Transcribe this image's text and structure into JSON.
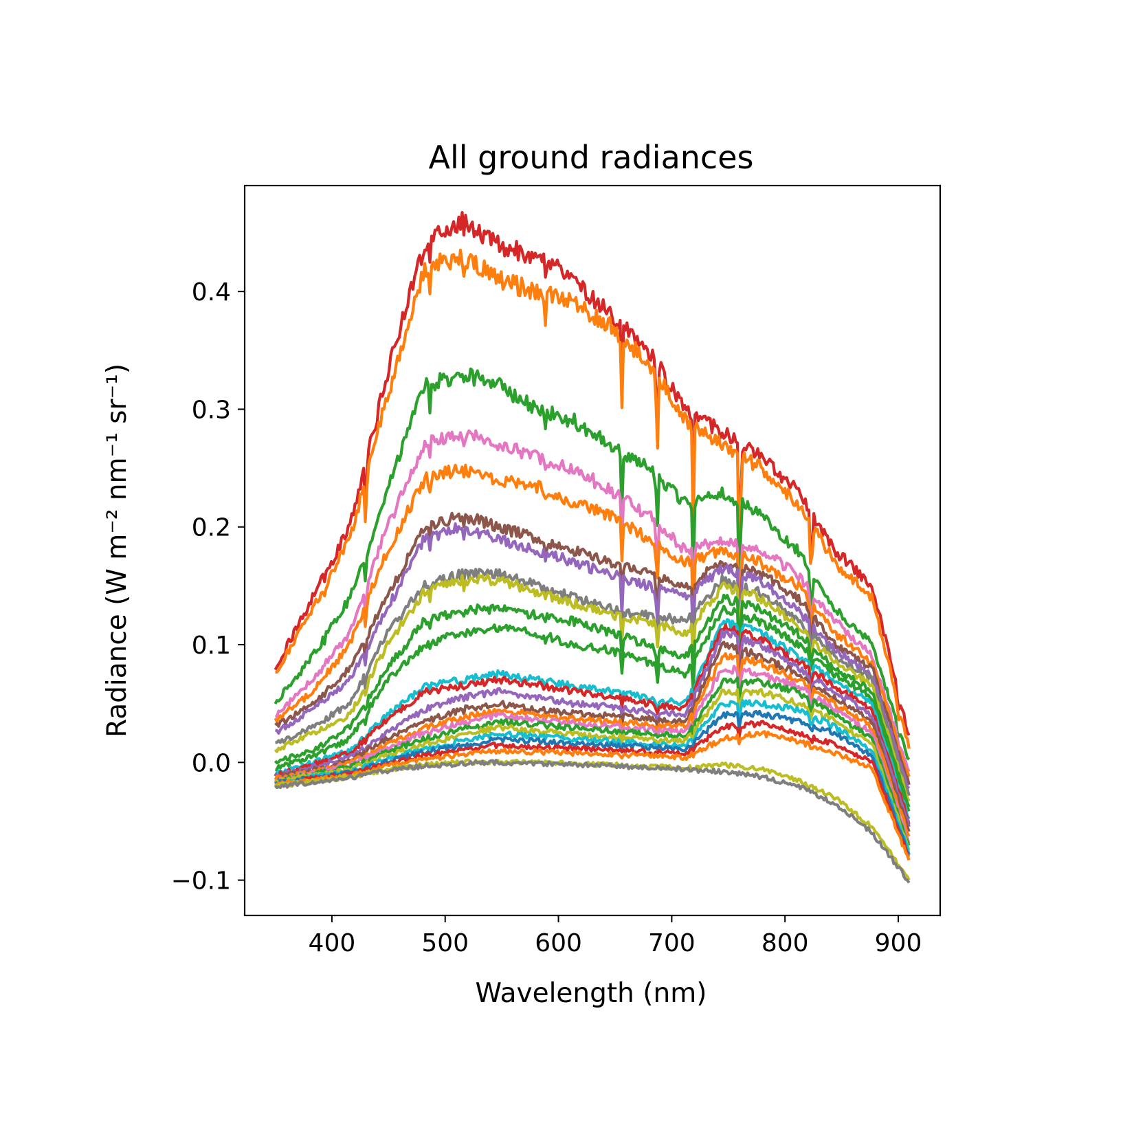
{
  "chart_data": {
    "type": "line",
    "title": "All ground radiances",
    "xlabel": "Wavelength (nm)",
    "ylabel": "Radiance (W m⁻² nm⁻¹ sr⁻¹)",
    "xlim": [
      323,
      937
    ],
    "ylim": [
      -0.13,
      0.49
    ],
    "x_ticks": [
      400,
      500,
      600,
      700,
      800,
      900
    ],
    "x_tick_labels": [
      "400",
      "500",
      "600",
      "700",
      "800",
      "900"
    ],
    "y_ticks": [
      -0.1,
      0.0,
      0.1,
      0.2,
      0.3,
      0.4
    ],
    "y_tick_labels": [
      "−0.1",
      "0.0",
      "0.1",
      "0.2",
      "0.3",
      "0.4"
    ],
    "grid": false,
    "legend": "none",
    "x_range": [
      350,
      910
    ],
    "colors": [
      "#d62728",
      "#ff7f0e",
      "#2ca02c",
      "#e377c2",
      "#ff7f0e",
      "#8c564b",
      "#9467bd",
      "#7f7f7f",
      "#bcbd22",
      "#2ca02c",
      "#17becf",
      "#1f77b4"
    ],
    "series": [
      {
        "values": [
          0.08,
          0.14,
          0.2,
          0.33,
          0.44,
          0.46,
          0.44,
          0.43,
          0.41,
          0.38,
          0.35,
          0.3,
          0.28,
          0.26,
          0.23,
          0.18,
          0.15,
          0.02
        ],
        "color": "#d62728"
      },
      {
        "values": [
          0.075,
          0.13,
          0.19,
          0.31,
          0.42,
          0.43,
          0.41,
          0.4,
          0.39,
          0.37,
          0.34,
          0.29,
          0.27,
          0.25,
          0.22,
          0.17,
          0.14,
          0.01
        ],
        "color": "#ff7f0e"
      },
      {
        "values": [
          0.05,
          0.09,
          0.14,
          0.23,
          0.32,
          0.33,
          0.32,
          0.3,
          0.29,
          0.27,
          0.25,
          0.22,
          0.23,
          0.21,
          0.18,
          0.13,
          0.1,
          0.0
        ],
        "color": "#2ca02c"
      },
      {
        "values": [
          0.04,
          0.07,
          0.11,
          0.2,
          0.27,
          0.28,
          0.27,
          0.26,
          0.25,
          0.23,
          0.21,
          0.18,
          0.19,
          0.18,
          0.16,
          0.12,
          0.09,
          -0.01
        ],
        "color": "#e377c2"
      },
      {
        "values": [
          0.035,
          0.06,
          0.1,
          0.18,
          0.24,
          0.25,
          0.24,
          0.235,
          0.22,
          0.21,
          0.19,
          0.17,
          0.18,
          0.17,
          0.15,
          0.11,
          0.085,
          -0.015
        ],
        "color": "#ff7f0e"
      },
      {
        "values": [
          0.03,
          0.05,
          0.08,
          0.14,
          0.2,
          0.21,
          0.2,
          0.19,
          0.18,
          0.17,
          0.16,
          0.15,
          0.17,
          0.16,
          0.14,
          0.1,
          0.08,
          -0.02
        ],
        "color": "#8c564b"
      },
      {
        "values": [
          0.025,
          0.045,
          0.07,
          0.13,
          0.19,
          0.2,
          0.19,
          0.18,
          0.17,
          0.16,
          0.15,
          0.14,
          0.165,
          0.155,
          0.13,
          0.095,
          0.075,
          -0.025
        ],
        "color": "#9467bd"
      },
      {
        "values": [
          0.015,
          0.03,
          0.05,
          0.11,
          0.15,
          0.16,
          0.16,
          0.15,
          0.14,
          0.13,
          0.125,
          0.12,
          0.155,
          0.145,
          0.12,
          0.09,
          0.07,
          -0.03
        ],
        "color": "#7f7f7f"
      },
      {
        "values": [
          0.01,
          0.025,
          0.04,
          0.1,
          0.145,
          0.155,
          0.155,
          0.145,
          0.135,
          0.125,
          0.12,
          0.11,
          0.15,
          0.14,
          0.115,
          0.085,
          0.065,
          -0.035
        ],
        "color": "#bcbd22"
      },
      {
        "values": [
          0.0,
          0.01,
          0.03,
          0.08,
          0.12,
          0.13,
          0.13,
          0.125,
          0.12,
          0.11,
          0.1,
          0.09,
          0.14,
          0.13,
          0.11,
          0.08,
          0.06,
          -0.04
        ],
        "color": "#2ca02c"
      },
      {
        "values": [
          -0.005,
          0.005,
          0.02,
          0.07,
          0.1,
          0.11,
          0.115,
          0.11,
          0.1,
          0.095,
          0.085,
          0.075,
          0.13,
          0.12,
          0.1,
          0.075,
          0.055,
          -0.045
        ],
        "color": "#2ca02c"
      },
      {
        "values": [
          -0.01,
          0.0,
          0.01,
          0.04,
          0.065,
          0.07,
          0.075,
          0.07,
          0.065,
          0.06,
          0.055,
          0.05,
          0.12,
          0.11,
          0.09,
          0.07,
          0.05,
          -0.05
        ],
        "color": "#17becf"
      },
      {
        "values": [
          -0.011,
          -0.002,
          0.008,
          0.036,
          0.06,
          0.065,
          0.07,
          0.066,
          0.06,
          0.056,
          0.05,
          0.046,
          0.115,
          0.105,
          0.085,
          0.065,
          0.045,
          -0.052
        ],
        "color": "#d62728"
      },
      {
        "values": [
          -0.012,
          -0.004,
          0.005,
          0.025,
          0.045,
          0.055,
          0.06,
          0.055,
          0.05,
          0.047,
          0.043,
          0.04,
          0.11,
          0.1,
          0.08,
          0.06,
          0.04,
          -0.055
        ],
        "color": "#9467bd"
      },
      {
        "values": [
          -0.013,
          -0.006,
          0.002,
          0.02,
          0.035,
          0.045,
          0.05,
          0.045,
          0.042,
          0.04,
          0.037,
          0.035,
          0.1,
          0.09,
          0.075,
          0.055,
          0.035,
          -0.06
        ],
        "color": "#8c564b"
      },
      {
        "values": [
          -0.014,
          -0.008,
          0.0,
          0.015,
          0.03,
          0.038,
          0.045,
          0.04,
          0.037,
          0.035,
          0.032,
          0.03,
          0.09,
          0.085,
          0.07,
          0.05,
          0.03,
          -0.065
        ],
        "color": "#ff7f0e"
      },
      {
        "values": [
          -0.015,
          -0.009,
          -0.002,
          0.012,
          0.025,
          0.033,
          0.04,
          0.036,
          0.033,
          0.031,
          0.028,
          0.026,
          0.08,
          0.075,
          0.065,
          0.045,
          0.025,
          -0.07
        ],
        "color": "#e377c2"
      },
      {
        "values": [
          -0.016,
          -0.01,
          -0.004,
          0.009,
          0.02,
          0.028,
          0.035,
          0.032,
          0.029,
          0.027,
          0.024,
          0.022,
          0.07,
          0.068,
          0.06,
          0.04,
          0.02,
          -0.073
        ],
        "color": "#2ca02c"
      },
      {
        "values": [
          -0.017,
          -0.011,
          -0.006,
          0.006,
          0.016,
          0.023,
          0.03,
          0.027,
          0.024,
          0.022,
          0.02,
          0.018,
          0.06,
          0.06,
          0.05,
          0.035,
          0.015,
          -0.076
        ],
        "color": "#bcbd22"
      },
      {
        "values": [
          -0.018,
          -0.012,
          -0.008,
          0.003,
          0.012,
          0.018,
          0.025,
          0.022,
          0.02,
          0.018,
          0.016,
          0.014,
          0.05,
          0.05,
          0.045,
          0.03,
          0.01,
          -0.078
        ],
        "color": "#17becf"
      },
      {
        "values": [
          -0.018,
          -0.013,
          -0.009,
          0.001,
          0.009,
          0.014,
          0.02,
          0.018,
          0.016,
          0.015,
          0.013,
          0.011,
          0.04,
          0.042,
          0.035,
          0.025,
          0.005,
          -0.08
        ],
        "color": "#1f77b4"
      },
      {
        "values": [
          -0.019,
          -0.014,
          -0.01,
          -0.001,
          0.006,
          0.01,
          0.015,
          0.013,
          0.012,
          0.011,
          0.009,
          0.007,
          0.03,
          0.033,
          0.025,
          0.015,
          0.0,
          -0.082
        ],
        "color": "#d62728"
      },
      {
        "values": [
          -0.019,
          -0.015,
          -0.011,
          -0.003,
          0.003,
          0.006,
          0.01,
          0.009,
          0.008,
          0.007,
          0.006,
          0.004,
          0.02,
          0.025,
          0.018,
          0.008,
          -0.005,
          -0.085
        ],
        "color": "#ff7f0e"
      },
      {
        "values": [
          -0.02,
          -0.016,
          -0.012,
          -0.006,
          -0.002,
          0.0,
          0.001,
          0.0,
          -0.001,
          -0.002,
          -0.003,
          -0.005,
          -0.002,
          -0.005,
          -0.015,
          -0.03,
          -0.055,
          -0.1
        ],
        "color": "#bcbd22"
      },
      {
        "values": [
          -0.021,
          -0.017,
          -0.013,
          -0.007,
          -0.003,
          -0.001,
          0.0,
          -0.001,
          -0.002,
          -0.003,
          -0.004,
          -0.006,
          -0.008,
          -0.012,
          -0.02,
          -0.035,
          -0.06,
          -0.102
        ],
        "color": "#7f7f7f"
      }
    ]
  }
}
